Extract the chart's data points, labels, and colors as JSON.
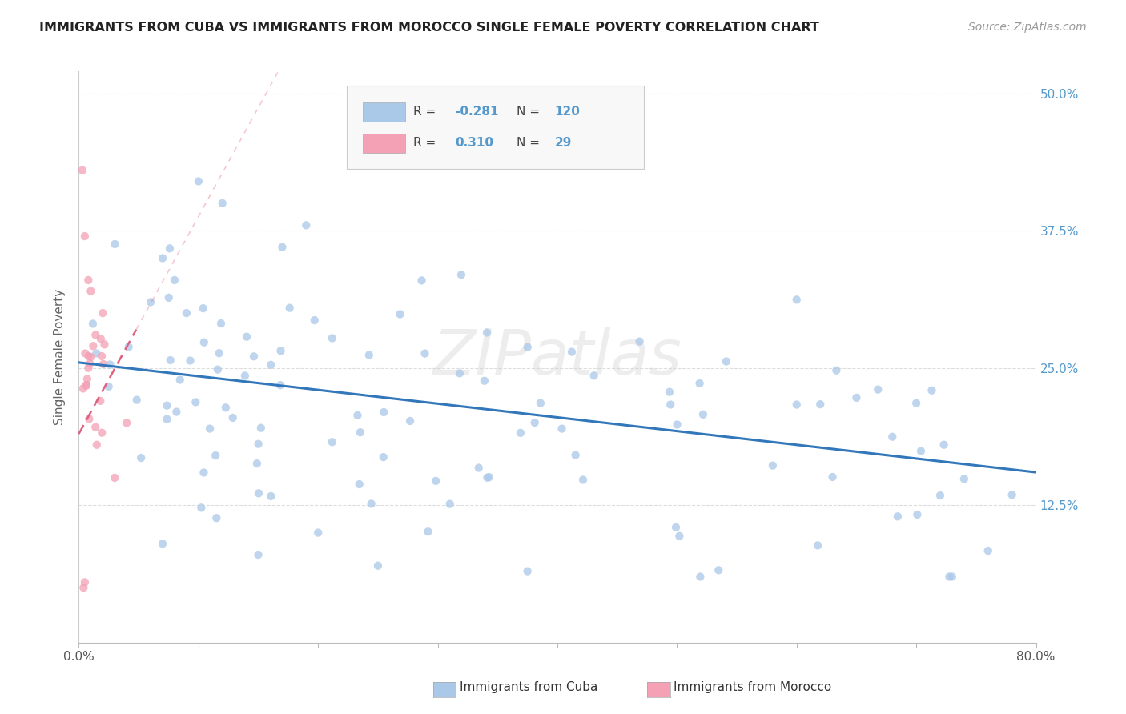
{
  "title": "IMMIGRANTS FROM CUBA VS IMMIGRANTS FROM MOROCCO SINGLE FEMALE POVERTY CORRELATION CHART",
  "source": "Source: ZipAtlas.com",
  "ylabel": "Single Female Poverty",
  "xlim": [
    0.0,
    0.8
  ],
  "ylim": [
    0.0,
    0.52
  ],
  "ytick_positions": [
    0.0,
    0.125,
    0.25,
    0.375,
    0.5
  ],
  "ytick_labels_right": [
    "",
    "12.5%",
    "25.0%",
    "37.5%",
    "50.0%"
  ],
  "xtick_positions": [
    0.0,
    0.1,
    0.2,
    0.3,
    0.4,
    0.5,
    0.6,
    0.7,
    0.8
  ],
  "xtick_labels": [
    "0.0%",
    "",
    "",
    "",
    "",
    "",
    "",
    "",
    "80.0%"
  ],
  "cuba_R": -0.281,
  "cuba_N": 120,
  "morocco_R": 0.31,
  "morocco_N": 29,
  "cuba_color": "#aac8e8",
  "morocco_color": "#f4a0b5",
  "cuba_line_color": "#3377bb",
  "morocco_line_color": "#e06080",
  "watermark": "ZIPatlas",
  "background_color": "#ffffff",
  "right_label_color": "#5599cc",
  "grid_color": "#dddddd",
  "cuba_line_start_y": 0.255,
  "cuba_line_end_y": 0.155,
  "morocco_line_start_x": 0.0,
  "morocco_line_start_y": 0.19,
  "morocco_line_end_x": 0.048,
  "morocco_line_end_y": 0.285
}
